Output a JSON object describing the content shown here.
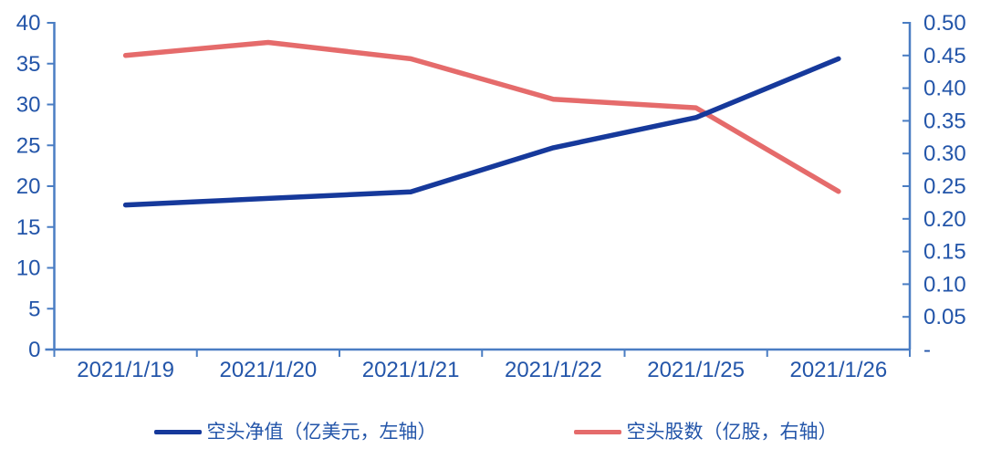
{
  "chart_data": {
    "type": "line",
    "title": "",
    "categories": [
      "2021/1/19",
      "2021/1/20",
      "2021/1/21",
      "2021/1/22",
      "2021/1/25",
      "2021/1/26"
    ],
    "series": [
      {
        "name": "空头净值（亿美元，左轴）",
        "axis": "left",
        "color": "#16399b",
        "values": [
          17.7,
          18.5,
          19.3,
          24.7,
          28.4,
          35.6
        ]
      },
      {
        "name": "空头股数（亿股，右轴）",
        "axis": "right",
        "color": "#e56b6b",
        "values": [
          0.45,
          0.47,
          0.445,
          0.383,
          0.37,
          0.242
        ]
      }
    ],
    "left_axis": {
      "min": 0,
      "max": 40,
      "step": 5,
      "tick_labels": [
        "0",
        "5",
        "10",
        "15",
        "20",
        "25",
        "30",
        "35",
        "40"
      ]
    },
    "right_axis": {
      "min": 0,
      "max": 0.5,
      "step": 0.05,
      "tick_labels": [
        "-",
        "0.05",
        "0.10",
        "0.15",
        "0.20",
        "0.25",
        "0.30",
        "0.35",
        "0.40",
        "0.45",
        "0.50"
      ]
    },
    "legend_position": "bottom",
    "grid": false
  },
  "style": {
    "axis_color": "#4a7dc3",
    "label_color": "#2355a9",
    "background": "#ffffff"
  }
}
